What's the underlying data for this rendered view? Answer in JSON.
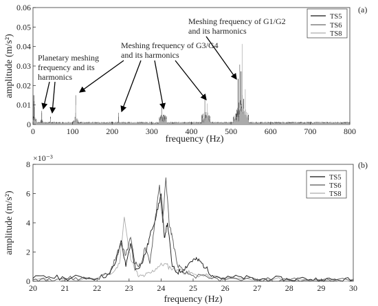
{
  "chart_data": [
    {
      "panel_label": "(a)",
      "type": "line",
      "xlabel": "frequency (Hz)",
      "ylabel": "amplitude (m/s²)",
      "xlim": [
        0,
        800
      ],
      "ylim": [
        0,
        0.06
      ],
      "x_ticks": [
        0,
        100,
        200,
        300,
        400,
        500,
        600,
        700,
        800
      ],
      "y_ticks": [
        "0",
        "0.01",
        "0.02",
        "0.03",
        "0.04",
        "0.05",
        "0.06"
      ],
      "legend": [
        "TS5",
        "TS6",
        "TS8"
      ],
      "legend_position": "top-right",
      "grid": false,
      "series": [
        {
          "name": "TS5",
          "color": "#111111",
          "peaks": [
            [
              2,
              0.015
            ],
            [
              22,
              0.006
            ],
            [
              44,
              0.004
            ],
            [
              108,
              0.006
            ],
            [
              216,
              0.004
            ],
            [
              325,
              0.007
            ],
            [
              434,
              0.006
            ],
            [
              518,
              0.02
            ],
            [
              525,
              0.024
            ],
            [
              532,
              0.012
            ]
          ]
        },
        {
          "name": "TS6",
          "color": "#666666",
          "peaks": [
            [
              3,
              0.012
            ],
            [
              22,
              0.007
            ],
            [
              108,
              0.015
            ],
            [
              216,
              0.006
            ],
            [
              325,
              0.008
            ],
            [
              434,
              0.012
            ],
            [
              522,
              0.03
            ],
            [
              528,
              0.024
            ]
          ]
        },
        {
          "name": "TS8",
          "color": "#aaaaaa",
          "peaks": [
            [
              4,
              0.009
            ],
            [
              44,
              0.003
            ],
            [
              108,
              0.01
            ],
            [
              325,
              0.005
            ],
            [
              440,
              0.01
            ],
            [
              528,
              0.039
            ],
            [
              536,
              0.016
            ]
          ]
        }
      ],
      "annotations": [
        {
          "text": [
            "Planetary meshing",
            "frequency and its",
            "harmonics"
          ]
        },
        {
          "text": [
            "Meshing frequency of G3/G4",
            "and its harmonics"
          ]
        },
        {
          "text": [
            "Meshing frequency of G1/G2",
            "and its harmonics"
          ]
        }
      ]
    },
    {
      "panel_label": "(b)",
      "type": "line",
      "xlabel": "frequency (Hz)",
      "ylabel": "amplitude (m/s²)",
      "xlim": [
        20,
        30
      ],
      "ylim": [
        0,
        0.008
      ],
      "y_exponent_label": "×10⁻³",
      "x_ticks": [
        20,
        21,
        22,
        23,
        24,
        25,
        26,
        27,
        28,
        29,
        30
      ],
      "y_ticks": [
        "0",
        "2",
        "4",
        "6",
        "8"
      ],
      "legend": [
        "TS5",
        "TS6",
        "TS8"
      ],
      "legend_position": "top-right",
      "grid": false,
      "series": [
        {
          "name": "TS5",
          "color": "#111111",
          "points": [
            [
              20,
              0.0002
            ],
            [
              20.5,
              0.0003
            ],
            [
              21,
              0.0002
            ],
            [
              21.5,
              0.0003
            ],
            [
              22,
              0.0002
            ],
            [
              22.4,
              0.0005
            ],
            [
              22.6,
              0.0014
            ],
            [
              22.75,
              0.0028
            ],
            [
              22.9,
              0.001
            ],
            [
              23.05,
              0.0026
            ],
            [
              23.2,
              0.0008
            ],
            [
              23.4,
              0.0012
            ],
            [
              23.55,
              0.0022
            ],
            [
              23.7,
              0.0035
            ],
            [
              23.85,
              0.0045
            ],
            [
              24.0,
              0.006
            ],
            [
              24.1,
              0.003
            ],
            [
              24.2,
              0.004
            ],
            [
              24.35,
              0.001
            ],
            [
              24.5,
              0.0006
            ],
            [
              24.7,
              0.0008
            ],
            [
              24.9,
              0.0013
            ],
            [
              25.05,
              0.0015
            ],
            [
              25.2,
              0.0014
            ],
            [
              25.4,
              0.0009
            ],
            [
              25.6,
              0.0004
            ],
            [
              26,
              0.0002
            ],
            [
              26.5,
              0.0003
            ],
            [
              27,
              0.0001
            ],
            [
              27.5,
              0.0002
            ],
            [
              28,
              0.0001
            ],
            [
              28.5,
              0.0002
            ],
            [
              29,
              0.0001
            ],
            [
              29.5,
              0.0001
            ],
            [
              30,
              0.0001
            ]
          ]
        },
        {
          "name": "TS6",
          "color": "#555555",
          "points": [
            [
              20,
              0.0001
            ],
            [
              20.5,
              0.0002
            ],
            [
              21,
              0.0002
            ],
            [
              21.5,
              0.0002
            ],
            [
              22,
              0.0002
            ],
            [
              22.4,
              0.0006
            ],
            [
              22.6,
              0.0017
            ],
            [
              22.75,
              0.0026
            ],
            [
              22.9,
              0.0018
            ],
            [
              23.05,
              0.003
            ],
            [
              23.2,
              0.0012
            ],
            [
              23.35,
              0.001
            ],
            [
              23.5,
              0.0023
            ],
            [
              23.65,
              0.0012
            ],
            [
              23.8,
              0.004
            ],
            [
              23.95,
              0.0066
            ],
            [
              24.05,
              0.004
            ],
            [
              24.15,
              0.0071
            ],
            [
              24.25,
              0.004
            ],
            [
              24.35,
              0.003
            ],
            [
              24.5,
              0.0012
            ],
            [
              24.7,
              0.0006
            ],
            [
              25,
              0.0004
            ],
            [
              25.5,
              0.0002
            ],
            [
              26,
              0.0001
            ],
            [
              27,
              0.0001
            ],
            [
              28,
              0.0001
            ],
            [
              29,
              0.0001
            ],
            [
              30,
              0.0001
            ]
          ]
        },
        {
          "name": "TS8",
          "color": "#aaaaaa",
          "points": [
            [
              20,
              0.0001
            ],
            [
              21,
              0.0001
            ],
            [
              22,
              0.0002
            ],
            [
              22.5,
              0.0006
            ],
            [
              22.7,
              0.0012
            ],
            [
              22.85,
              0.0044
            ],
            [
              23.0,
              0.002
            ],
            [
              23.15,
              0.001
            ],
            [
              23.3,
              0.0003
            ],
            [
              23.5,
              0.0004
            ],
            [
              23.7,
              0.0006
            ],
            [
              23.9,
              0.001
            ],
            [
              24.1,
              0.0012
            ],
            [
              24.3,
              0.0009
            ],
            [
              24.5,
              0.0008
            ],
            [
              24.8,
              0.0006
            ],
            [
              25,
              0.0005
            ],
            [
              25.5,
              0.0003
            ],
            [
              26,
              0.0002
            ],
            [
              27,
              0.0001
            ],
            [
              28,
              0.0001
            ],
            [
              29,
              0.0001
            ],
            [
              30,
              0.0001
            ]
          ]
        }
      ]
    }
  ]
}
